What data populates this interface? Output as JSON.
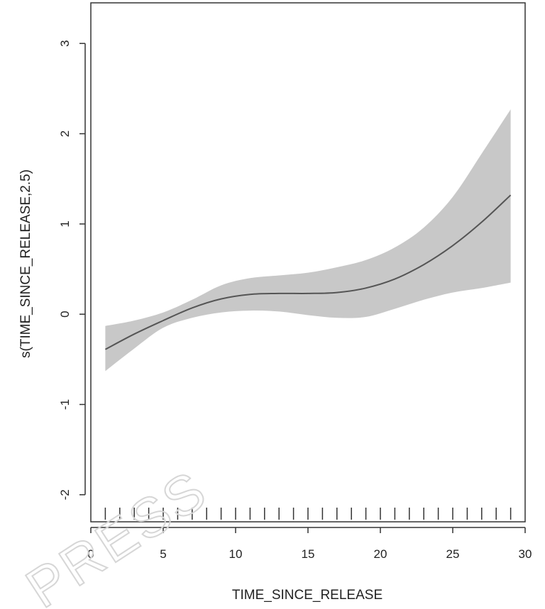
{
  "chart_data": {
    "type": "line",
    "title": "",
    "xlabel": "TIME_SINCE_RELEASE",
    "ylabel": "s(TIME_SINCE_RELEASE,2.5)",
    "xlim": [
      0,
      30
    ],
    "ylim": [
      -2.3,
      3.45
    ],
    "x_ticks": [
      0,
      5,
      10,
      15,
      20,
      25,
      30
    ],
    "y_ticks": [
      -2,
      -1,
      0,
      1,
      2,
      3
    ],
    "grid": false,
    "legend": "none",
    "watermark": "PRESS",
    "colors": {
      "line": "#555555",
      "band": "#c8c8c8",
      "axis": "#333333"
    },
    "series": [
      {
        "x": [
          1,
          3,
          5,
          7,
          9,
          11,
          13,
          15,
          17,
          19,
          21,
          23,
          25,
          27,
          29
        ],
        "y": [
          -0.39,
          -0.22,
          -0.07,
          0.07,
          0.17,
          0.22,
          0.23,
          0.23,
          0.24,
          0.29,
          0.39,
          0.55,
          0.76,
          1.02,
          1.32
        ],
        "lower": [
          -0.63,
          -0.38,
          -0.15,
          -0.04,
          0.02,
          0.04,
          0.03,
          -0.01,
          -0.04,
          -0.03,
          0.06,
          0.16,
          0.24,
          0.29,
          0.35
        ],
        "upper": [
          -0.13,
          -0.07,
          0.02,
          0.16,
          0.32,
          0.4,
          0.43,
          0.46,
          0.52,
          0.6,
          0.74,
          0.96,
          1.3,
          1.78,
          2.27
        ]
      }
    ],
    "rug_x": [
      1,
      2,
      3,
      4,
      5,
      6,
      7,
      8,
      9,
      10,
      11,
      12,
      13,
      14,
      15,
      16,
      17,
      18,
      19,
      20,
      21,
      22,
      23,
      24,
      25,
      26,
      27,
      28,
      29
    ]
  }
}
